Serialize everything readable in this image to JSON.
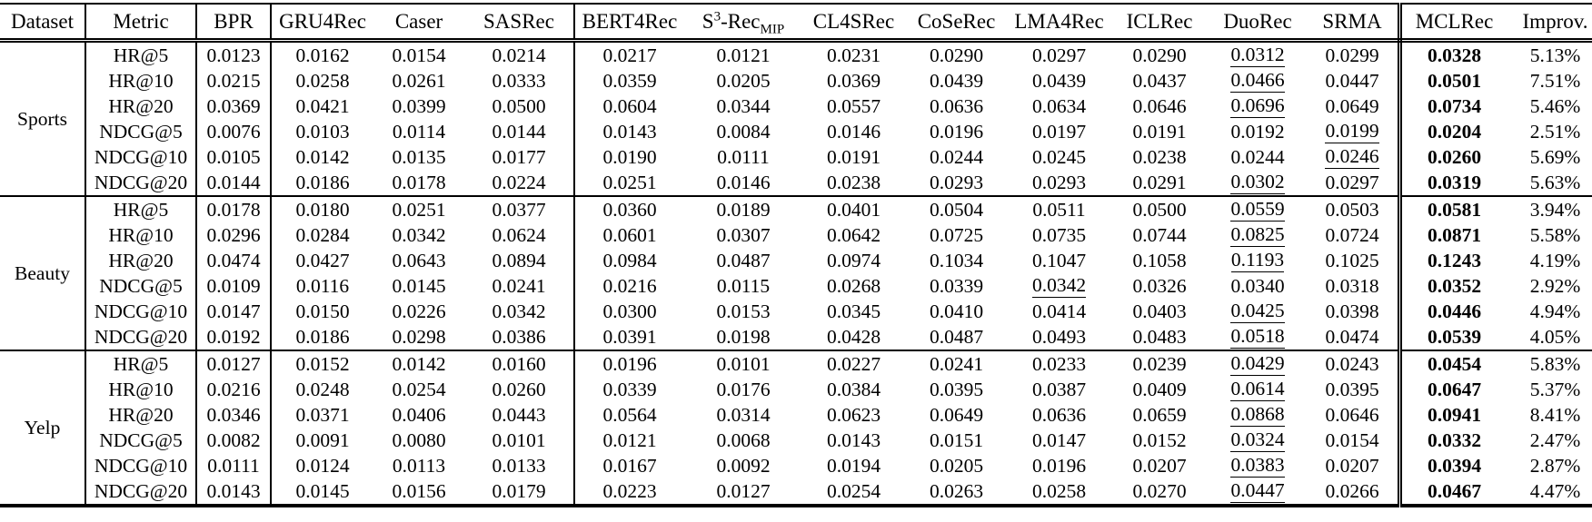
{
  "table": {
    "header": {
      "dataset": "Dataset",
      "metric": "Metric",
      "baselines": [
        {
          "label": "BPR"
        },
        {
          "label": "GRU4Rec"
        },
        {
          "label": "Caser"
        },
        {
          "label": "SASRec"
        },
        {
          "label": "BERT4Rec"
        },
        {
          "pre": "S",
          "sup": "3",
          "mid": "-Rec",
          "sub": "MIP",
          "name": "s3-rec-mip"
        },
        {
          "label": "CL4SRec"
        },
        {
          "label": "CoSeRec"
        },
        {
          "label": "LMA4Rec"
        },
        {
          "label": "ICLRec"
        },
        {
          "label": "DuoRec"
        },
        {
          "label": "SRMA"
        }
      ],
      "ours": "MCLRec",
      "improv": "Improv."
    },
    "groups": [
      {
        "dataset": "Sports",
        "rows": [
          {
            "metric": "HR@5",
            "values": [
              "0.0123",
              "0.0162",
              "0.0154",
              "0.0214",
              "0.0217",
              "0.0121",
              "0.0231",
              "0.0290",
              "0.0297",
              "0.0290",
              "0.0312",
              "0.0299"
            ],
            "best_baseline_index": 10,
            "ours": "0.0328",
            "improv": "5.13%"
          },
          {
            "metric": "HR@10",
            "values": [
              "0.0215",
              "0.0258",
              "0.0261",
              "0.0333",
              "0.0359",
              "0.0205",
              "0.0369",
              "0.0439",
              "0.0439",
              "0.0437",
              "0.0466",
              "0.0447"
            ],
            "best_baseline_index": 10,
            "ours": "0.0501",
            "improv": "7.51%"
          },
          {
            "metric": "HR@20",
            "values": [
              "0.0369",
              "0.0421",
              "0.0399",
              "0.0500",
              "0.0604",
              "0.0344",
              "0.0557",
              "0.0636",
              "0.0634",
              "0.0646",
              "0.0696",
              "0.0649"
            ],
            "best_baseline_index": 10,
            "ours": "0.0734",
            "improv": "5.46%"
          },
          {
            "metric": "NDCG@5",
            "values": [
              "0.0076",
              "0.0103",
              "0.0114",
              "0.0144",
              "0.0143",
              "0.0084",
              "0.0146",
              "0.0196",
              "0.0197",
              "0.0191",
              "0.0192",
              "0.0199"
            ],
            "best_baseline_index": 11,
            "ours": "0.0204",
            "improv": "2.51%"
          },
          {
            "metric": "NDCG@10",
            "values": [
              "0.0105",
              "0.0142",
              "0.0135",
              "0.0177",
              "0.0190",
              "0.0111",
              "0.0191",
              "0.0244",
              "0.0245",
              "0.0238",
              "0.0244",
              "0.0246"
            ],
            "best_baseline_index": 11,
            "ours": "0.0260",
            "improv": "5.69%"
          },
          {
            "metric": "NDCG@20",
            "values": [
              "0.0144",
              "0.0186",
              "0.0178",
              "0.0224",
              "0.0251",
              "0.0146",
              "0.0238",
              "0.0293",
              "0.0293",
              "0.0291",
              "0.0302",
              "0.0297"
            ],
            "best_baseline_index": 10,
            "ours": "0.0319",
            "improv": "5.63%"
          }
        ]
      },
      {
        "dataset": "Beauty",
        "rows": [
          {
            "metric": "HR@5",
            "values": [
              "0.0178",
              "0.0180",
              "0.0251",
              "0.0377",
              "0.0360",
              "0.0189",
              "0.0401",
              "0.0504",
              "0.0511",
              "0.0500",
              "0.0559",
              "0.0503"
            ],
            "best_baseline_index": 10,
            "ours": "0.0581",
            "improv": "3.94%"
          },
          {
            "metric": "HR@10",
            "values": [
              "0.0296",
              "0.0284",
              "0.0342",
              "0.0624",
              "0.0601",
              "0.0307",
              "0.0642",
              "0.0725",
              "0.0735",
              "0.0744",
              "0.0825",
              "0.0724"
            ],
            "best_baseline_index": 10,
            "ours": "0.0871",
            "improv": "5.58%"
          },
          {
            "metric": "HR@20",
            "values": [
              "0.0474",
              "0.0427",
              "0.0643",
              "0.0894",
              "0.0984",
              "0.0487",
              "0.0974",
              "0.1034",
              "0.1047",
              "0.1058",
              "0.1193",
              "0.1025"
            ],
            "best_baseline_index": 10,
            "ours": "0.1243",
            "improv": "4.19%"
          },
          {
            "metric": "NDCG@5",
            "values": [
              "0.0109",
              "0.0116",
              "0.0145",
              "0.0241",
              "0.0216",
              "0.0115",
              "0.0268",
              "0.0339",
              "0.0342",
              "0.0326",
              "0.0340",
              "0.0318"
            ],
            "best_baseline_index": 8,
            "ours": "0.0352",
            "improv": "2.92%"
          },
          {
            "metric": "NDCG@10",
            "values": [
              "0.0147",
              "0.0150",
              "0.0226",
              "0.0342",
              "0.0300",
              "0.0153",
              "0.0345",
              "0.0410",
              "0.0414",
              "0.0403",
              "0.0425",
              "0.0398"
            ],
            "best_baseline_index": 10,
            "ours": "0.0446",
            "improv": "4.94%"
          },
          {
            "metric": "NDCG@20",
            "values": [
              "0.0192",
              "0.0186",
              "0.0298",
              "0.0386",
              "0.0391",
              "0.0198",
              "0.0428",
              "0.0487",
              "0.0493",
              "0.0483",
              "0.0518",
              "0.0474"
            ],
            "best_baseline_index": 10,
            "ours": "0.0539",
            "improv": "4.05%"
          }
        ]
      },
      {
        "dataset": "Yelp",
        "rows": [
          {
            "metric": "HR@5",
            "values": [
              "0.0127",
              "0.0152",
              "0.0142",
              "0.0160",
              "0.0196",
              "0.0101",
              "0.0227",
              "0.0241",
              "0.0233",
              "0.0239",
              "0.0429",
              "0.0243"
            ],
            "best_baseline_index": 10,
            "ours": "0.0454",
            "improv": "5.83%"
          },
          {
            "metric": "HR@10",
            "values": [
              "0.0216",
              "0.0248",
              "0.0254",
              "0.0260",
              "0.0339",
              "0.0176",
              "0.0384",
              "0.0395",
              "0.0387",
              "0.0409",
              "0.0614",
              "0.0395"
            ],
            "best_baseline_index": 10,
            "ours": "0.0647",
            "improv": "5.37%"
          },
          {
            "metric": "HR@20",
            "values": [
              "0.0346",
              "0.0371",
              "0.0406",
              "0.0443",
              "0.0564",
              "0.0314",
              "0.0623",
              "0.0649",
              "0.0636",
              "0.0659",
              "0.0868",
              "0.0646"
            ],
            "best_baseline_index": 10,
            "ours": "0.0941",
            "improv": "8.41%"
          },
          {
            "metric": "NDCG@5",
            "values": [
              "0.0082",
              "0.0091",
              "0.0080",
              "0.0101",
              "0.0121",
              "0.0068",
              "0.0143",
              "0.0151",
              "0.0147",
              "0.0152",
              "0.0324",
              "0.0154"
            ],
            "best_baseline_index": 10,
            "ours": "0.0332",
            "improv": "2.47%"
          },
          {
            "metric": "NDCG@10",
            "values": [
              "0.0111",
              "0.0124",
              "0.0113",
              "0.0133",
              "0.0167",
              "0.0092",
              "0.0194",
              "0.0205",
              "0.0196",
              "0.0207",
              "0.0383",
              "0.0207"
            ],
            "best_baseline_index": 10,
            "ours": "0.0394",
            "improv": "2.87%"
          },
          {
            "metric": "NDCG@20",
            "values": [
              "0.0143",
              "0.0145",
              "0.0156",
              "0.0179",
              "0.0223",
              "0.0127",
              "0.0254",
              "0.0263",
              "0.0258",
              "0.0270",
              "0.0447",
              "0.0266"
            ],
            "best_baseline_index": 10,
            "ours": "0.0467",
            "improv": "4.47%"
          }
        ]
      }
    ],
    "style_legend": {
      "best_overall": "bold",
      "best_baseline": "underline"
    },
    "colors": {
      "text": "#000000",
      "background": "#ffffff",
      "rule": "#000000"
    }
  }
}
